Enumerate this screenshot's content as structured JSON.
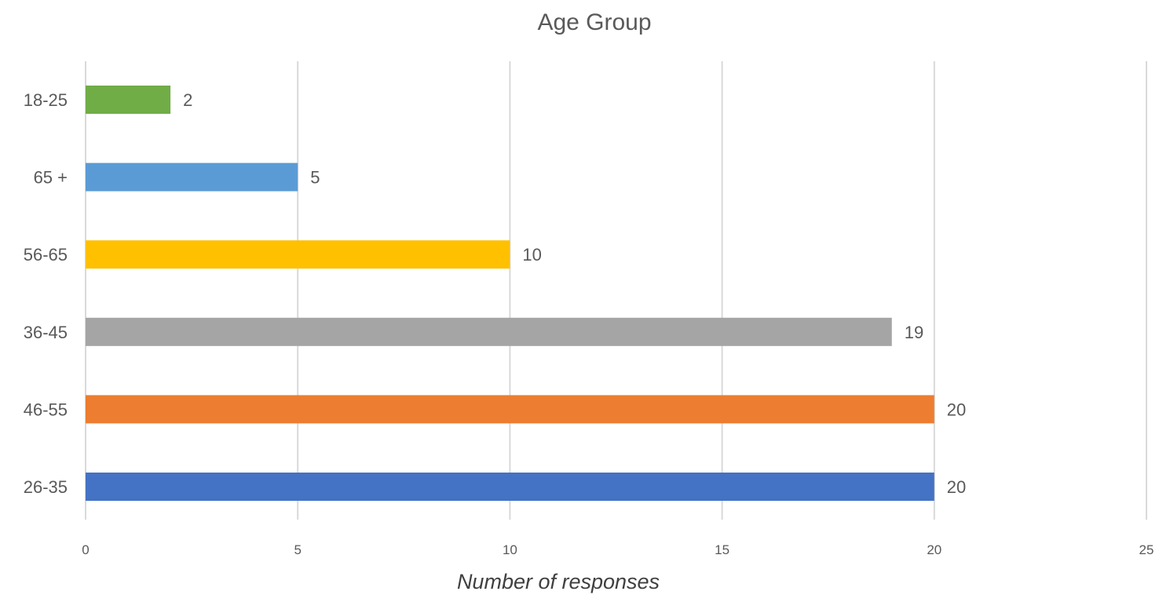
{
  "chart_data": {
    "type": "bar",
    "orientation": "horizontal",
    "title": "Age Group",
    "xlabel": "Number of responses",
    "ylabel": "",
    "categories": [
      "18-25",
      "65 +",
      "56-65",
      "36-45",
      "46-55",
      "26-35"
    ],
    "values": [
      2,
      5,
      10,
      19,
      20,
      20
    ],
    "colors": [
      "#70ad47",
      "#5b9bd5",
      "#ffc000",
      "#a5a5a5",
      "#ed7d31",
      "#4472c4"
    ],
    "xlim": [
      0,
      25
    ],
    "xticks": [
      "0",
      "5",
      "10",
      "15",
      "20",
      "25"
    ],
    "grid": "vertical",
    "legend": "none",
    "data_labels": true
  }
}
